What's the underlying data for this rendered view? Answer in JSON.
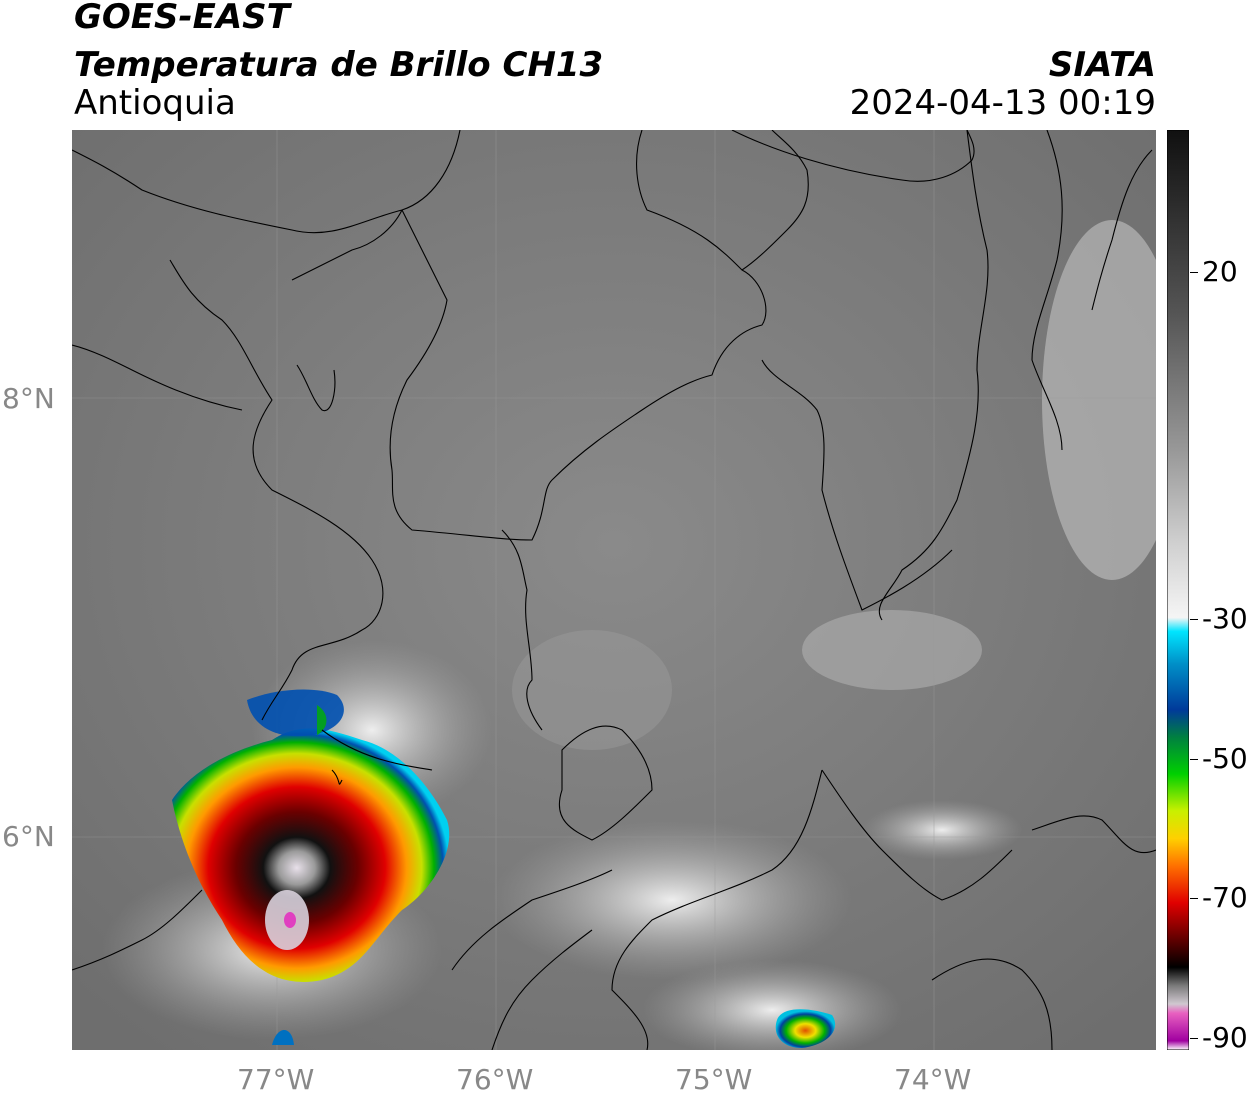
{
  "header": {
    "satellite": "GOES-EAST",
    "product": "Temperatura de Brillo CH13",
    "region": "Antioquia",
    "brand": "SIATA",
    "datetime": "2024-04-13 00:19"
  },
  "axes": {
    "latitude_labels": [
      "8°N",
      "6°N"
    ],
    "longitude_labels": [
      "77°W",
      "76°W",
      "75°W",
      "74°W"
    ]
  },
  "colorbar": {
    "labels": [
      "20",
      "-30",
      "-50",
      "-70",
      "-90"
    ],
    "colors": {
      "warm_dark": "#202020",
      "warm_light": "#f2f2f2",
      "cyan": "#00e5ff",
      "blue": "#003a9a",
      "green": "#00c000",
      "yellow": "#f2f200",
      "orange": "#ff8c00",
      "red": "#e00000",
      "dark_red": "#400000",
      "black": "#000000",
      "gray_cold": "#c8c0c8",
      "magenta": "#e040c0",
      "purple": "#a000a0"
    }
  }
}
